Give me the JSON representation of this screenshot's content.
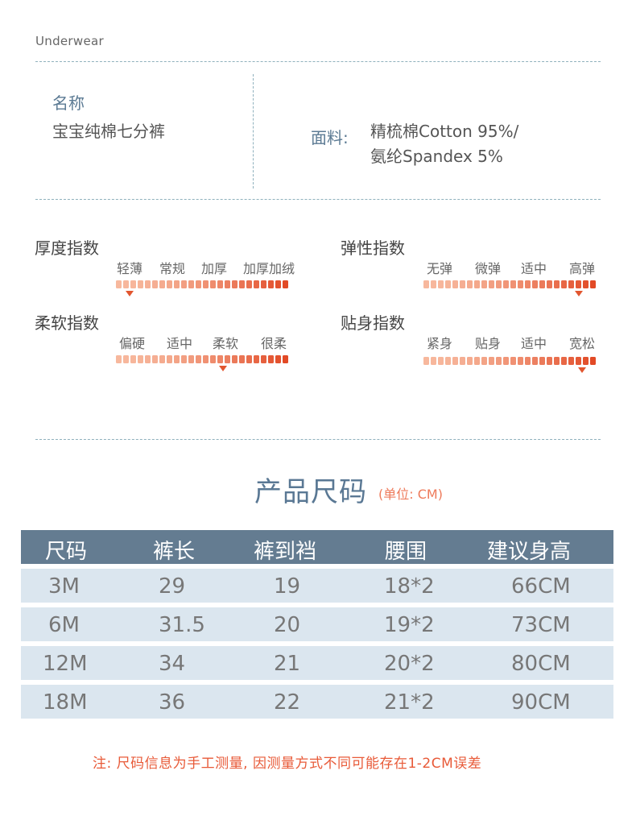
{
  "brand": "Underwear",
  "product": {
    "name_label": "名称",
    "name_value": "宝宝纯棉七分裤",
    "fabric_label": "面料:",
    "fabric_lines": [
      "精梳棉Cotton 95%/",
      "氨纶Spandex 5%"
    ]
  },
  "indices": {
    "thickness": {
      "title": "厚度指数",
      "ticks": [
        "轻薄",
        "常规",
        "加厚",
        "加厚加绒"
      ],
      "level": 0.08
    },
    "elasticity": {
      "title": "弹性指数",
      "ticks": [
        "无弹",
        "微弹",
        "适中",
        "高弹"
      ],
      "level": 0.9
    },
    "softness": {
      "title": "柔软指数",
      "ticks": [
        "偏硬",
        "适中",
        "柔软",
        "很柔"
      ],
      "level": 0.62
    },
    "fit": {
      "title": "贴身指数",
      "ticks": [
        "紧身",
        "贴身",
        "适中",
        "宽松"
      ],
      "level": 0.92
    }
  },
  "colors": {
    "bar_start": "#f7b89d",
    "bar_end": "#e24a26",
    "marker": "#e2562f",
    "header_bg": "#647c91",
    "row_bg": "#dbe6ef",
    "title": "#5a7894",
    "note": "#e85a38"
  },
  "size_section": {
    "title": "产品尺码",
    "unit": "(单位: CM)",
    "headers": [
      "尺码",
      "裤长",
      "裤到裆",
      "腰围",
      "建议身高"
    ],
    "rows": [
      [
        "3M",
        "29",
        "19",
        "18*2",
        "66CM"
      ],
      [
        "6M",
        "31.5",
        "20",
        "19*2",
        "73CM"
      ],
      [
        "12M",
        "34",
        "21",
        "20*2",
        "80CM"
      ],
      [
        "18M",
        "36",
        "22",
        "21*2",
        "90CM"
      ]
    ],
    "note": "注: 尺码信息为手工测量, 因测量方式不同可能存在1-2CM误差"
  }
}
